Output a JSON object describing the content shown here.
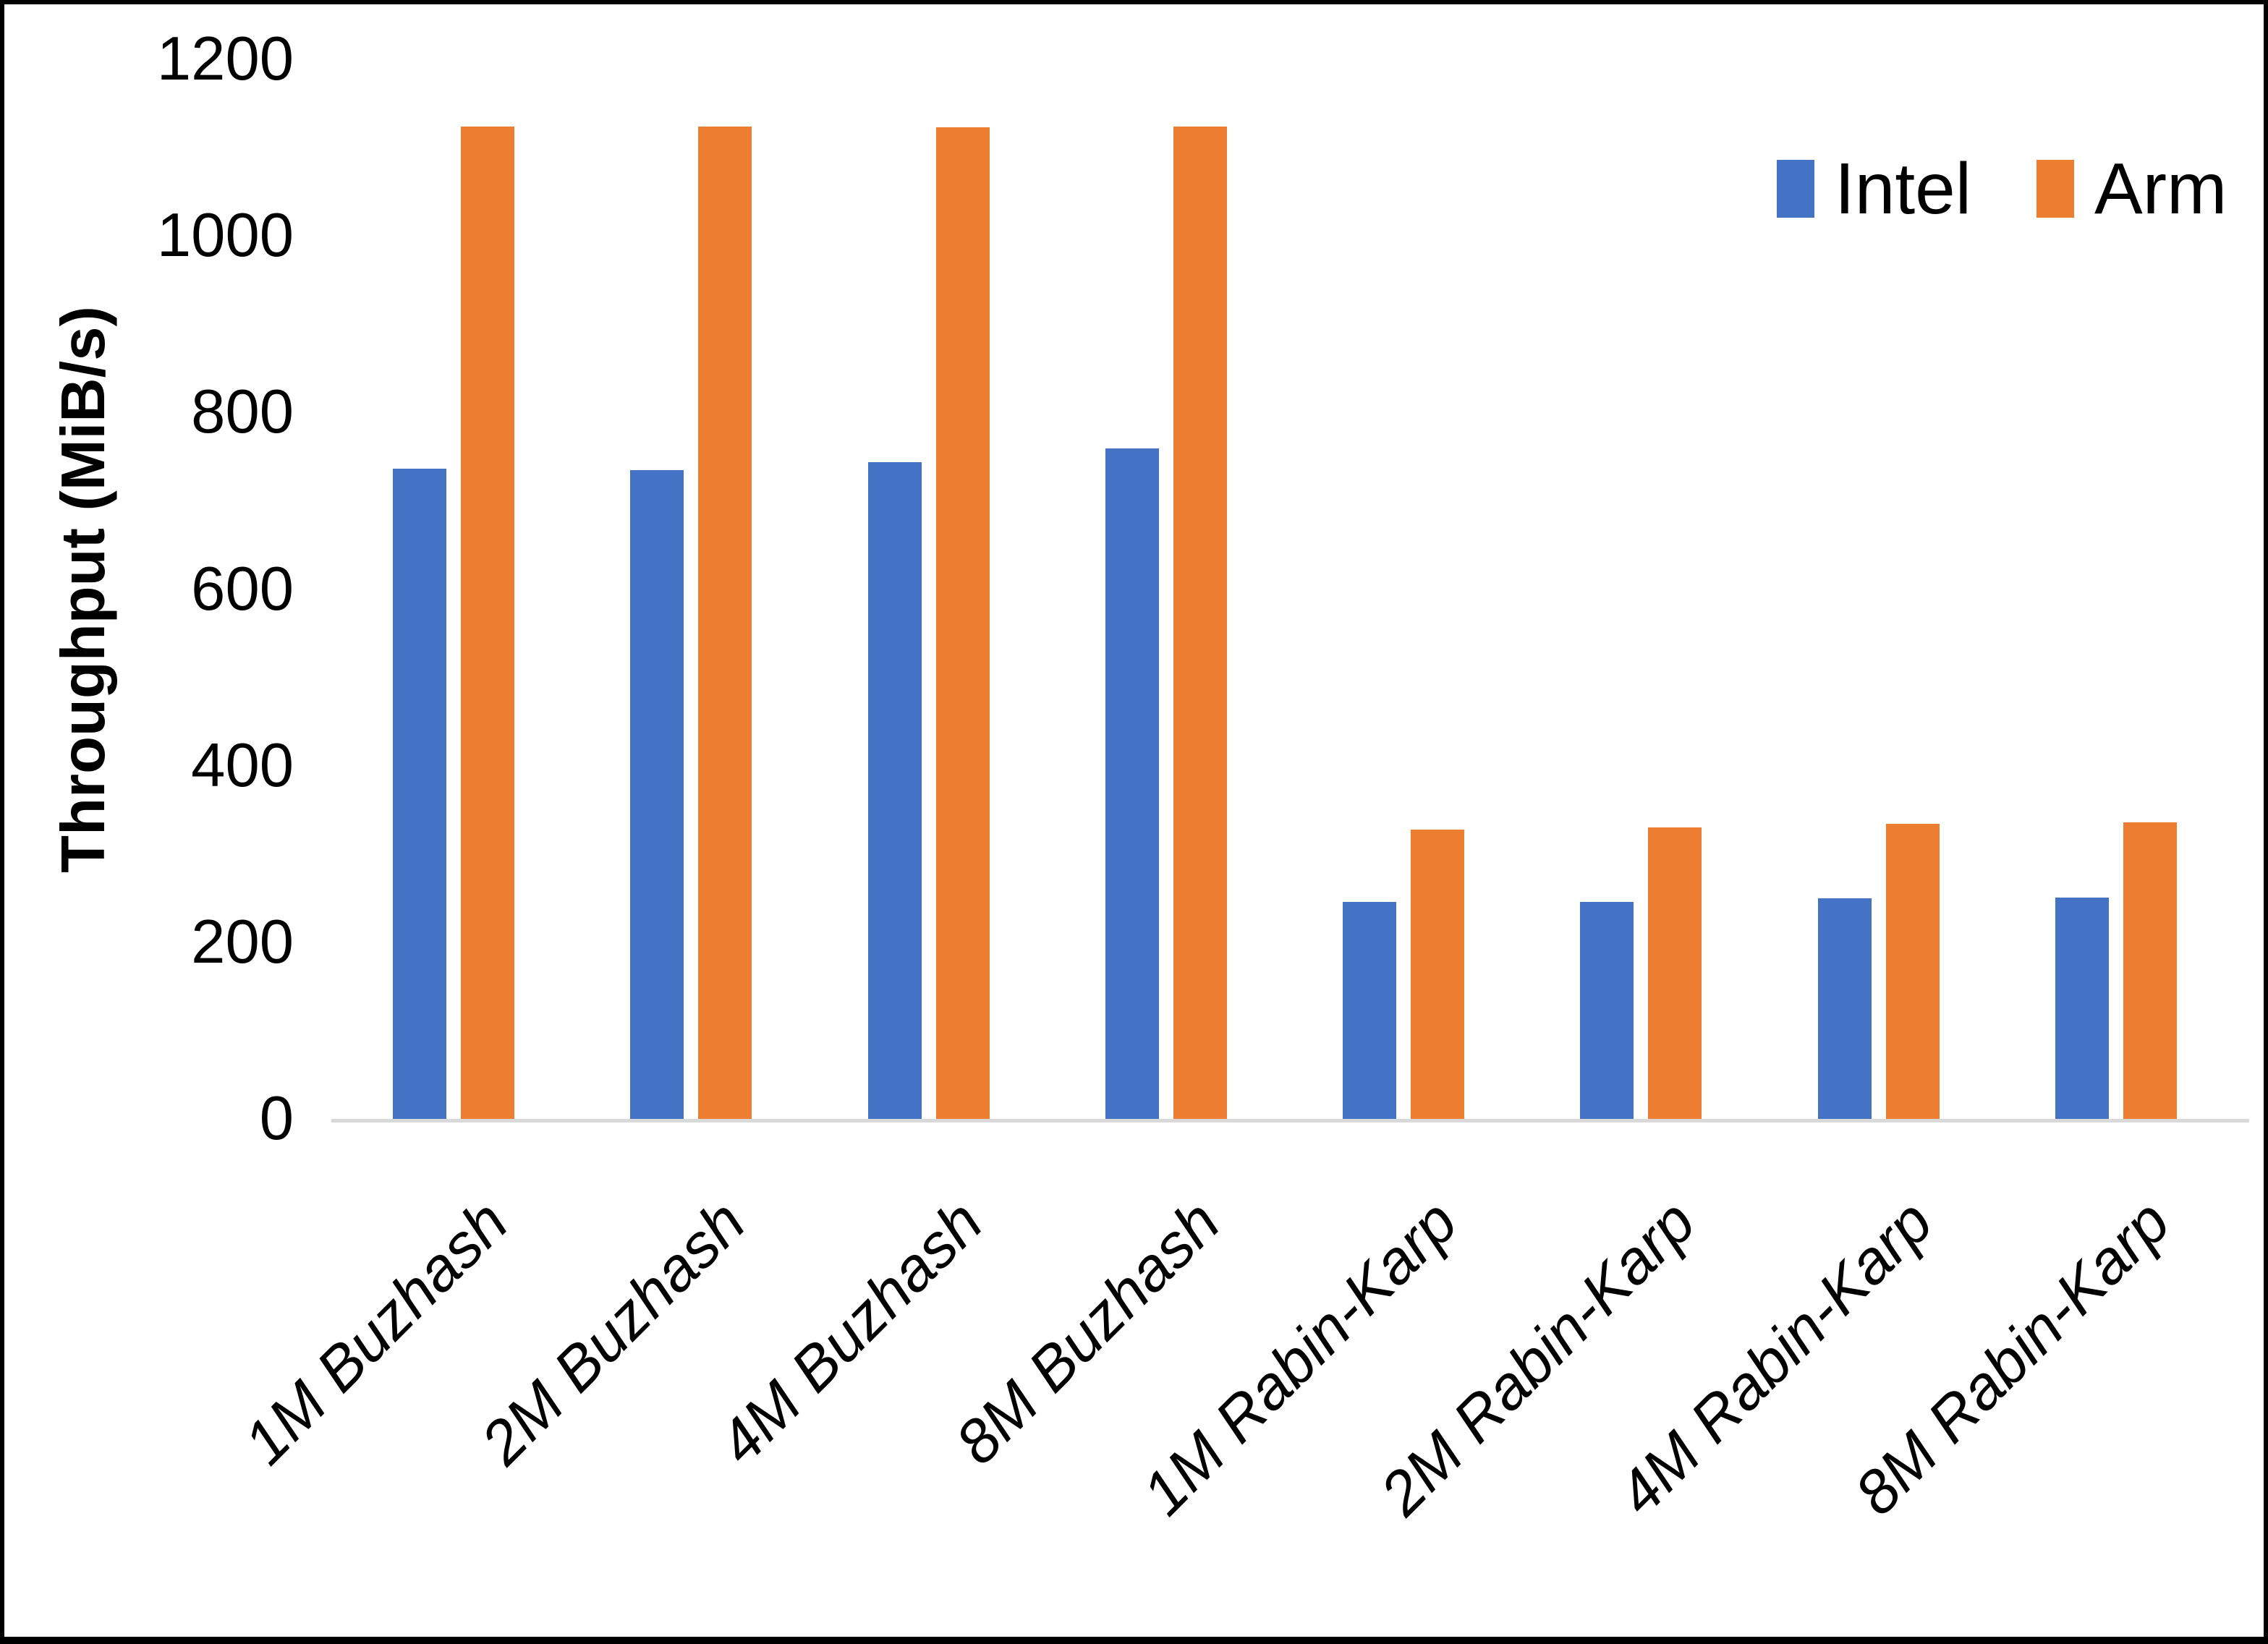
{
  "chart_data": {
    "type": "bar",
    "title": "",
    "xlabel": "",
    "ylabel": "Throughput (MiB/s)",
    "ylim": [
      0,
      1200
    ],
    "yticks": [
      0,
      200,
      400,
      600,
      800,
      1000,
      1200
    ],
    "grid": false,
    "legend_position": "top-right",
    "categories": [
      "1M Buzhash",
      "2M Buzhash",
      "4M Buzhash",
      "8M Buzhash",
      "1M Rabin-Karp",
      "2M Rabin-Karp",
      "4M Rabin-Karp",
      "8M Rabin-Karp"
    ],
    "series": [
      {
        "name": "Intel",
        "color": "#4472C4",
        "values": [
          736,
          735,
          744,
          759,
          246,
          246,
          250,
          251
        ]
      },
      {
        "name": "Arm",
        "color": "#ED7D31",
        "values": [
          1124,
          1124,
          1123,
          1124,
          328,
          330,
          334,
          336
        ]
      }
    ]
  },
  "legend": {
    "items": [
      {
        "label": "Intel",
        "color": "#4472C4"
      },
      {
        "label": "Arm",
        "color": "#ED7D31"
      }
    ]
  },
  "colors": {
    "axis_line": "#D9D9D9",
    "text": "#000000",
    "background": "#FFFFFF",
    "border": "#000000"
  }
}
